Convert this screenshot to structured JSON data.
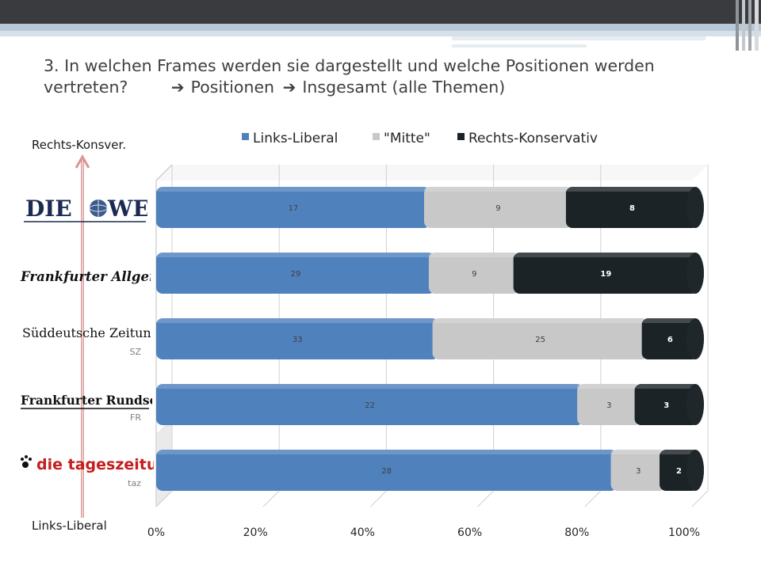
{
  "slide": {
    "title_line1": "3. In welchen Frames werden sie dargestellt und welche Positionen werden",
    "title_line2_a": "vertreten?",
    "title_line2_b": "Positionen",
    "title_line2_c": "Insgesamt (alle Themen)",
    "arrow_icon": "➔"
  },
  "axis_labels": {
    "top": "Rechts-Konsver.",
    "bottom": "Links-Liberal"
  },
  "logos": [
    {
      "name": "DIE WELT",
      "part1": "DIE",
      "part2": "WELT"
    },
    {
      "name": "Frankfurter Allgemeine"
    },
    {
      "name": "Süddeutsche Zeitung"
    },
    {
      "name": "Frankfurter Rundschau"
    },
    {
      "name": "die tageszeitung"
    }
  ],
  "chart_data": {
    "type": "bar",
    "orientation": "horizontal-stacked-100",
    "categories": [
      "",
      "",
      "SZ",
      "FR",
      "taz"
    ],
    "series": [
      {
        "name": "Links-Liberal",
        "color": "#4f81bd",
        "values": [
          17,
          29,
          33,
          22,
          28
        ]
      },
      {
        "name": "\"Mitte\"",
        "color": "#c8c8c8",
        "values": [
          9,
          9,
          25,
          3,
          3
        ]
      },
      {
        "name": "Rechts-Konservativ",
        "color": "#1b2327",
        "values": [
          8,
          19,
          6,
          3,
          2
        ]
      }
    ],
    "x_ticks": [
      "0%",
      "20%",
      "40%",
      "60%",
      "80%",
      "100%"
    ],
    "xlim": [
      0,
      100
    ],
    "legend_position": "top",
    "grid": true
  }
}
